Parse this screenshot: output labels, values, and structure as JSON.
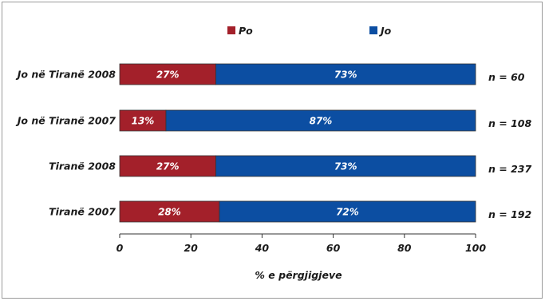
{
  "chart_data": {
    "type": "bar",
    "orientation": "horizontal",
    "stacked": true,
    "categories": [
      "Jo në Tiranë 2008",
      "Jo në Tiranë 2007",
      "Tiranë 2008",
      "Tiranë 2007"
    ],
    "series": [
      {
        "name": "Po",
        "color": "#a3202a",
        "values": [
          27,
          13,
          27,
          28
        ],
        "labels": [
          "27%",
          "13%",
          "27%",
          "28%"
        ]
      },
      {
        "name": "Jo",
        "color": "#0c4ea2",
        "values": [
          73,
          87,
          73,
          72
        ],
        "labels": [
          "73%",
          "87%",
          "73%",
          "72%"
        ]
      }
    ],
    "sample_sizes": [
      "n = 60",
      "n = 108",
      "n = 237",
      "n = 192"
    ],
    "xlabel": "% e përgjigjeve",
    "ylabel": "",
    "title": "",
    "xlim": [
      0,
      100
    ],
    "xticks": [
      0,
      20,
      40,
      60,
      80,
      100
    ],
    "xtick_labels": [
      "0",
      "20",
      "40",
      "60",
      "80",
      "100"
    ],
    "grid": false,
    "legend_position": "top-center"
  }
}
